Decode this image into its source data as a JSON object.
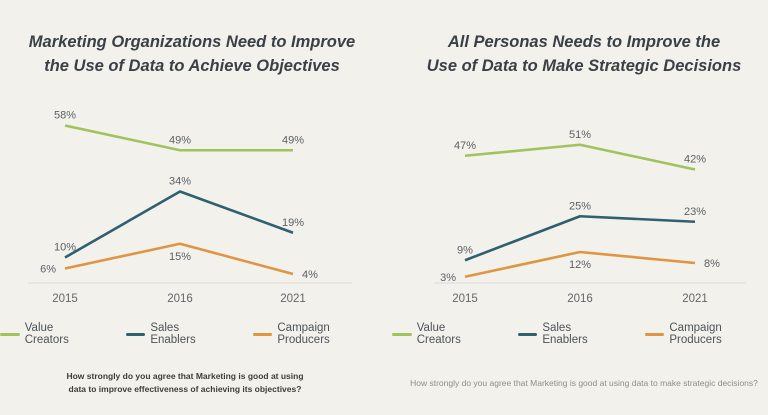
{
  "page": {
    "background": "#f2f1ec"
  },
  "chart_data": [
    {
      "type": "line",
      "title_lines": [
        "Marketing Organizations Need to Improve",
        "the Use of Data to Achieve Objectives"
      ],
      "categories": [
        "2015",
        "2016",
        "2021"
      ],
      "series": [
        {
          "name": "Value Creators",
          "color": "#a2c25e",
          "values": [
            58,
            49,
            49
          ],
          "labels": [
            "58%",
            "49%",
            "49%"
          ],
          "label_pos": [
            "above",
            "above",
            "above"
          ]
        },
        {
          "name": "Sales Enablers",
          "color": "#2f606f",
          "values": [
            10,
            34,
            19
          ],
          "labels": [
            "10%",
            "34%",
            "19%"
          ],
          "label_pos": [
            "above",
            "above",
            "above"
          ]
        },
        {
          "name": "Campaign Producers",
          "color": "#df9542",
          "values": [
            6,
            15,
            4
          ],
          "labels": [
            "6%",
            "15%",
            "4%"
          ],
          "label_pos": [
            "left",
            "below",
            "right"
          ]
        }
      ],
      "ylim": [
        0,
        65
      ],
      "grid": false,
      "legend_position": "bottom",
      "footnote": "How strongly do you agree that Marketing is good at using data to improve effectiveness of achieving its objectives?"
    },
    {
      "type": "line",
      "title_lines": [
        "All Personas Needs to Improve the",
        "Use of Data to Make Strategic Decisions"
      ],
      "categories": [
        "2015",
        "2016",
        "2021"
      ],
      "series": [
        {
          "name": "Value Creators",
          "color": "#a2c25e",
          "values": [
            47,
            51,
            42
          ],
          "labels": [
            "47%",
            "51%",
            "42%"
          ],
          "label_pos": [
            "above",
            "above",
            "above"
          ]
        },
        {
          "name": "Sales Enablers",
          "color": "#2f606f",
          "values": [
            9,
            25,
            23
          ],
          "labels": [
            "9%",
            "25%",
            "23%"
          ],
          "label_pos": [
            "above",
            "above",
            "above"
          ]
        },
        {
          "name": "Campaign Producers",
          "color": "#df9542",
          "values": [
            3,
            12,
            8
          ],
          "labels": [
            "3%",
            "12%",
            "8%"
          ],
          "label_pos": [
            "left",
            "below",
            "right"
          ]
        }
      ],
      "ylim": [
        0,
        65
      ],
      "grid": false,
      "legend_position": "bottom",
      "footnote": "How strongly do you agree that Marketing is good at using data to make strategic decisions?"
    }
  ]
}
